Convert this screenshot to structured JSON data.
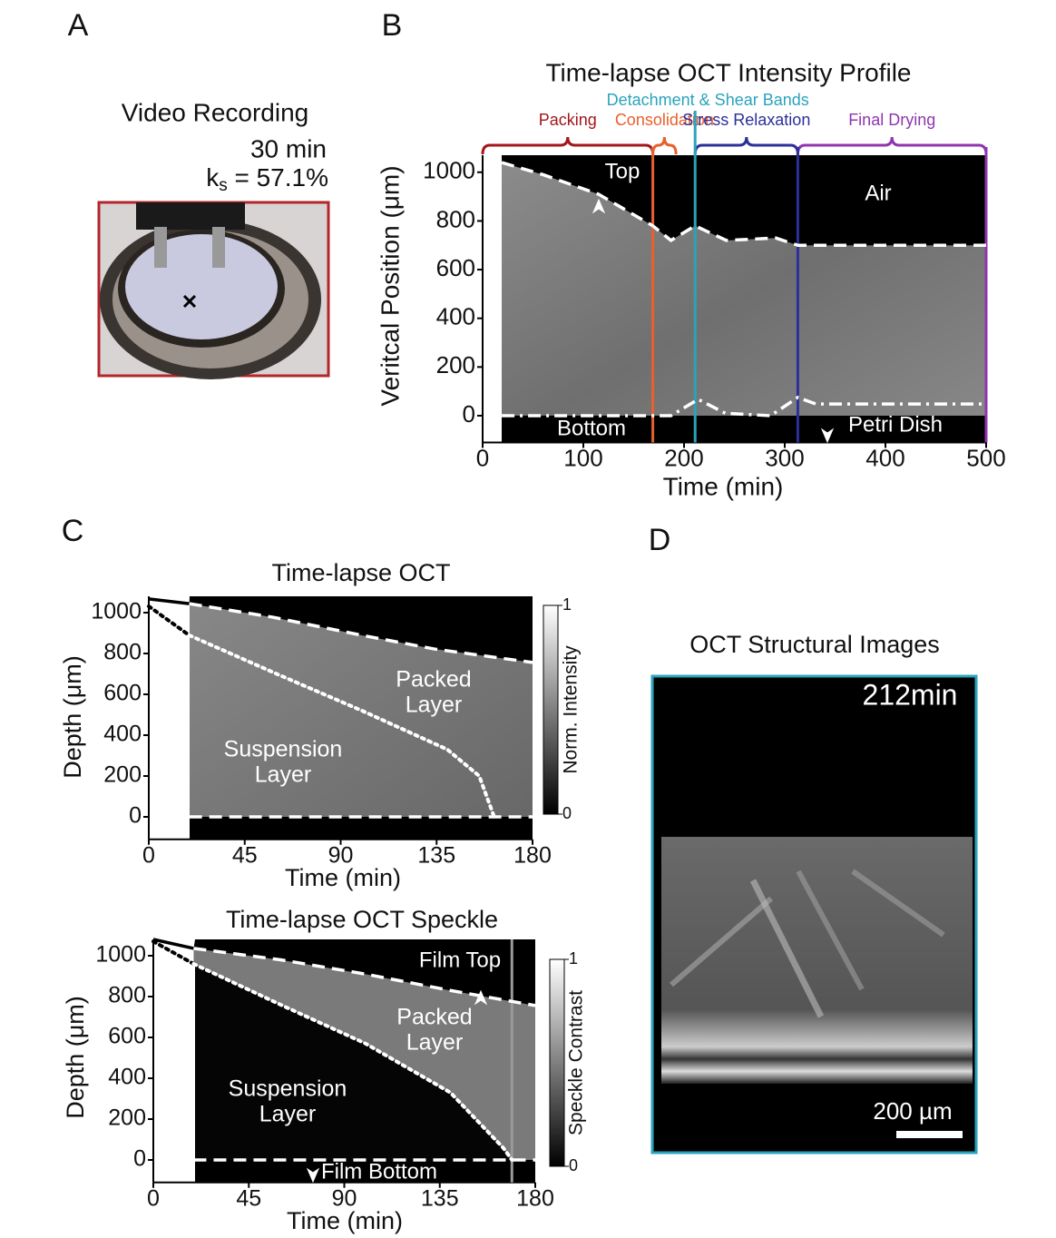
{
  "panel_labels": [
    "A",
    "B",
    "C",
    "D"
  ],
  "panel_a": {
    "title": "Video Recording",
    "time": "30 min",
    "ks": {
      "base": "k",
      "sub": "s",
      "rest": " = 57.1%"
    }
  },
  "panel_d": {
    "title": "OCT Structural Images",
    "time": "212min",
    "scale_bar": "200 µm"
  },
  "chart_data": [
    {
      "type": "heatmap",
      "title": "Time-lapse OCT Intensity Profile",
      "xlabel": "Time (min)",
      "ylabel": "Veritcal Position (μm)",
      "xlim": [
        0,
        500
      ],
      "xticks": [
        0,
        100,
        200,
        300,
        400,
        500
      ],
      "ylim": [
        -110,
        1070
      ],
      "yticks": [
        0,
        200,
        400,
        600,
        800,
        1000
      ],
      "phases": [
        {
          "name": "Packing",
          "color": "#a3161c",
          "range": [
            0,
            169
          ]
        },
        {
          "name": "Consolidation",
          "color": "#e8602c",
          "range": [
            169,
            192
          ]
        },
        {
          "name": "Stress Relaxation",
          "color": "#2c2f9a",
          "range": [
            211,
            313
          ]
        },
        {
          "name": "Final Drying",
          "color": "#9035b0",
          "range": [
            313,
            500
          ]
        }
      ],
      "markers": [
        {
          "x": 169,
          "color": "#e8602c"
        },
        {
          "name": "Detachment & Shear Bands",
          "x": 211,
          "color": "#2aa3bd"
        },
        {
          "x": 313,
          "color": "#2c2f9a"
        },
        {
          "x": 500,
          "color": "#9035b0"
        }
      ],
      "series": [
        {
          "style": "dashed",
          "color": "#ffffff",
          "x": [
            19,
            60,
            115,
            169,
            187,
            211,
            242,
            291,
            313,
            400,
            500
          ],
          "values": [
            1040,
            990,
            910,
            780,
            720,
            780,
            720,
            730,
            700,
            700,
            700
          ]
        },
        {
          "style": "dashdot",
          "color": "#ffffff",
          "x": [
            19,
            187,
            214,
            241,
            286,
            313,
            331,
            500
          ],
          "values": [
            0,
            0,
            67,
            10,
            0,
            75,
            48,
            48
          ]
        }
      ],
      "annotations": [
        [
          "Top"
        ],
        [
          "Air"
        ],
        [
          "Bottom"
        ],
        [
          "Petri Dish"
        ]
      ]
    },
    {
      "type": "heatmap",
      "title": "Time-lapse OCT",
      "xlabel": "Time (min)",
      "ylabel": "Depth (μm)",
      "xlim": [
        0,
        180
      ],
      "xticks": [
        0,
        45,
        90,
        135,
        180
      ],
      "ylim": [
        -110,
        1080
      ],
      "yticks": [
        0,
        200,
        400,
        600,
        800,
        1000
      ],
      "colorbar": {
        "label": "Norm. Intensity",
        "clim": [
          0,
          1
        ],
        "ticks": [
          0,
          1
        ]
      },
      "series": [
        {
          "style": "solid",
          "color": "#000000",
          "x": [
            0,
            19
          ],
          "values": [
            1067,
            1044
          ]
        },
        {
          "style": "dashed",
          "color": "#ffffff",
          "x": [
            19,
            58,
            100,
            134,
            180
          ],
          "values": [
            1044,
            978,
            889,
            822,
            756
          ]
        },
        {
          "style": "dotted",
          "color": "#000000",
          "x": [
            0,
            19
          ],
          "values": [
            1031,
            889
          ]
        },
        {
          "style": "dotted",
          "color": "#ffffff",
          "x": [
            19,
            60,
            100,
            140,
            155,
            162
          ],
          "values": [
            889,
            700,
            520,
            330,
            200,
            0
          ]
        },
        {
          "style": "dashed",
          "color": "#ffffff",
          "x": [
            19,
            180
          ],
          "values": [
            0,
            0
          ]
        }
      ],
      "annotations": [
        [
          "Packed",
          "Layer"
        ],
        [
          "Suspension",
          "Layer"
        ]
      ]
    },
    {
      "type": "heatmap",
      "title": "Time-lapse OCT Speckle",
      "xlabel": "Time (min)",
      "ylabel": "Depth (μm)",
      "xlim": [
        0,
        180
      ],
      "xticks": [
        0,
        45,
        90,
        135,
        180
      ],
      "ylim": [
        -110,
        1080
      ],
      "yticks": [
        0,
        200,
        400,
        600,
        800,
        1000
      ],
      "colorbar": {
        "label": "Speckle Contrast",
        "clim": [
          0,
          1
        ],
        "ticks": [
          0,
          1
        ]
      },
      "markers": [
        {
          "x": 169,
          "color": "#9a9a9a"
        }
      ],
      "series": [
        {
          "style": "solid",
          "color": "#000000",
          "x": [
            0,
            19
          ],
          "values": [
            1080,
            1036
          ]
        },
        {
          "style": "dashed",
          "color": "#ffffff",
          "x": [
            19,
            60,
            100,
            140,
            180
          ],
          "values": [
            1036,
            980,
            910,
            830,
            756
          ]
        },
        {
          "style": "dotted",
          "color": "#000000",
          "x": [
            0,
            19
          ],
          "values": [
            1070,
            960
          ]
        },
        {
          "style": "dotted",
          "color": "#ffffff",
          "x": [
            19,
            60,
            100,
            140,
            165,
            169
          ],
          "values": [
            960,
            760,
            570,
            330,
            58,
            0
          ]
        },
        {
          "style": "dashed",
          "color": "#ffffff",
          "x": [
            19,
            180
          ],
          "values": [
            0,
            0
          ]
        }
      ],
      "annotations": [
        [
          "Film Top"
        ],
        [
          "Packed",
          "Layer"
        ],
        [
          "Suspension",
          "Layer"
        ],
        [
          "Film Bottom"
        ]
      ]
    }
  ]
}
